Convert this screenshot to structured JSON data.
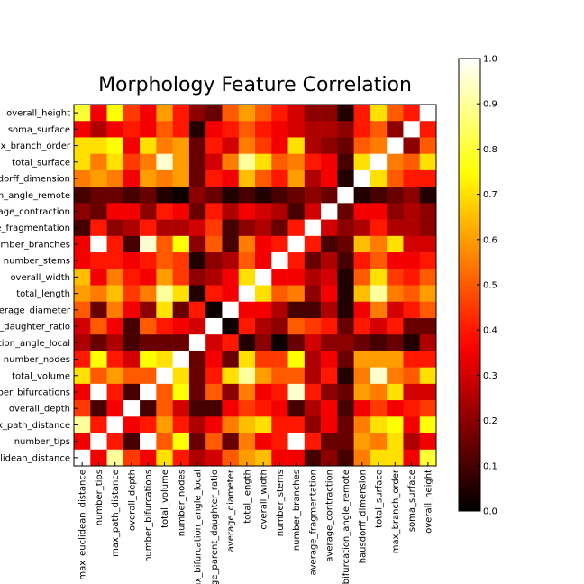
{
  "chart_data": {
    "type": "heatmap",
    "title": "Morphology Feature Correlation",
    "colormap": "hot",
    "clim": [
      0,
      1
    ],
    "colorbar_ticks": [
      {
        "value": 0,
        "label": "0.0"
      },
      0.1,
      0.2,
      0.3,
      0.4,
      0.5,
      0.6,
      0.7,
      0.8,
      0.9,
      {
        "value": 1,
        "label": "1.0"
      }
    ],
    "x_labels": [
      "max_euclidean_distance",
      "number_tips",
      "max_path_distance",
      "overall_depth",
      "number_bifurcations",
      "total_volume",
      "number_nodes",
      "max_bifurcation_angle_local",
      "average_parent_daughter_ratio",
      "average_diameter",
      "total_length",
      "overall_width",
      "number_stems",
      "number_branches",
      "average_fragmentation",
      "average_contraction",
      "max_bifurcation_angle_remote",
      "hausdorff_dimension",
      "total_surface",
      "max_branch_order",
      "soma_surface",
      "overall_height"
    ],
    "y_labels": [
      "overall_height",
      "soma_surface",
      "max_branch_order",
      "total_surface",
      "hausdorff_dimension",
      "max_bifurcation_angle_remote",
      "average_contraction",
      "average_fragmentation",
      "number_branches",
      "number_stems",
      "overall_width",
      "total_length",
      "average_diameter",
      "average_parent_daughter_ratio",
      "max_bifurcation_angle_local",
      "number_nodes",
      "total_volume",
      "number_bifurcations",
      "overall_depth",
      "max_path_distance",
      "number_tips",
      "max_euclidean_distance"
    ],
    "matrix": [
      [
        0.8,
        0.35,
        0.75,
        0.45,
        0.35,
        0.6,
        0.4,
        0.2,
        0.15,
        0.5,
        0.6,
        0.5,
        0.4,
        0.3,
        0.2,
        0.2,
        0.05,
        0.4,
        0.7,
        0.5,
        0.4,
        1
      ],
      [
        0.35,
        0.25,
        0.35,
        0.4,
        0.35,
        0.5,
        0.4,
        0.05,
        0.35,
        0.4,
        0.5,
        0.4,
        0.35,
        0.3,
        0.25,
        0.25,
        0.2,
        0.4,
        0.5,
        0.2,
        1,
        0.4
      ],
      [
        0.7,
        0.7,
        0.75,
        0.35,
        0.7,
        0.55,
        0.6,
        0.15,
        0.4,
        0.3,
        0.55,
        0.45,
        0.35,
        0.7,
        0.25,
        0.2,
        0.15,
        0.5,
        0.55,
        1,
        0.2,
        0.5
      ],
      [
        0.7,
        0.55,
        0.7,
        0.45,
        0.55,
        0.95,
        0.6,
        0.15,
        0.3,
        0.55,
        0.9,
        0.7,
        0.5,
        0.55,
        0.4,
        0.35,
        0.1,
        0.7,
        1,
        0.55,
        0.5,
        0.7
      ],
      [
        0.55,
        0.6,
        0.55,
        0.35,
        0.6,
        0.55,
        0.6,
        0.15,
        0.4,
        0.35,
        0.65,
        0.5,
        0.4,
        0.6,
        0.25,
        0.35,
        0.05,
        1,
        0.7,
        0.5,
        0.4,
        0.4
      ],
      [
        0.1,
        0.15,
        0.15,
        0.1,
        0.15,
        0.05,
        0.02,
        0.2,
        0.15,
        0.05,
        0.1,
        0.05,
        0.1,
        0.15,
        0.2,
        0.15,
        1,
        0.05,
        0.1,
        0.15,
        0.2,
        0.05
      ],
      [
        0.2,
        0.15,
        0.35,
        0.35,
        0.2,
        0.4,
        0.35,
        0.15,
        0.4,
        0.25,
        0.35,
        0.3,
        0.25,
        0.1,
        0.3,
        1,
        0.15,
        0.35,
        0.35,
        0.2,
        0.25,
        0.2
      ],
      [
        0.1,
        0.4,
        0.2,
        0.25,
        0.4,
        0.25,
        0.25,
        0.3,
        0.45,
        0.1,
        0.2,
        0.25,
        0.15,
        0.4,
        1,
        0.3,
        0.2,
        0.25,
        0.4,
        0.25,
        0.25,
        0.2
      ],
      [
        0.35,
        1,
        0.4,
        0.1,
        0.95,
        0.5,
        0.75,
        0.2,
        0.5,
        0.1,
        0.55,
        0.35,
        0.4,
        1,
        0.4,
        0.1,
        0.15,
        0.65,
        0.55,
        0.7,
        0.3,
        0.3
      ],
      [
        0.35,
        0.4,
        0.4,
        0.35,
        0.4,
        0.5,
        0.45,
        0.05,
        0.2,
        0.25,
        0.5,
        0.35,
        1,
        0.4,
        0.15,
        0.25,
        0.1,
        0.4,
        0.5,
        0.35,
        0.35,
        0.4
      ],
      [
        0.65,
        0.35,
        0.55,
        0.4,
        0.35,
        0.6,
        0.45,
        0.2,
        0.25,
        0.35,
        0.7,
        1,
        0.35,
        0.35,
        0.25,
        0.3,
        0.05,
        0.5,
        0.7,
        0.45,
        0.4,
        0.5
      ],
      [
        0.6,
        0.55,
        0.65,
        0.45,
        0.55,
        0.9,
        0.7,
        0.05,
        0.4,
        0.35,
        1,
        0.7,
        0.5,
        0.55,
        0.2,
        0.35,
        0.05,
        0.65,
        0.9,
        0.55,
        0.5,
        0.6
      ],
      [
        0.5,
        0.15,
        0.55,
        0.35,
        0.2,
        0.7,
        0.15,
        0.4,
        0.02,
        1,
        0.35,
        0.35,
        0.25,
        0.1,
        0.1,
        0.25,
        0.05,
        0.35,
        0.55,
        0.3,
        0.4,
        0.5
      ],
      [
        0.3,
        0.5,
        0.35,
        0.1,
        0.5,
        0.4,
        0.35,
        0.3,
        1,
        0.02,
        0.4,
        0.25,
        0.2,
        0.5,
        0.45,
        0.4,
        0.15,
        0.4,
        0.3,
        0.4,
        0.15,
        0.15
      ],
      [
        0.25,
        0.15,
        0.25,
        0.1,
        0.15,
        0.15,
        0.15,
        1,
        0.3,
        0.4,
        0.05,
        0.2,
        0.02,
        0.15,
        0.3,
        0.2,
        0.2,
        0.15,
        0.1,
        0.15,
        0.05,
        0.25
      ],
      [
        0.4,
        0.75,
        0.4,
        0.3,
        0.75,
        0.7,
        1,
        0.15,
        0.35,
        0.15,
        0.7,
        0.45,
        0.45,
        0.75,
        0.25,
        0.35,
        0.15,
        0.6,
        0.6,
        0.6,
        0.4,
        0.4
      ],
      [
        0.7,
        0.5,
        0.6,
        0.5,
        0.5,
        1,
        0.7,
        0.15,
        0.4,
        0.7,
        0.9,
        0.6,
        0.5,
        0.5,
        0.25,
        0.4,
        0.05,
        0.55,
        0.95,
        0.55,
        0.5,
        0.7
      ],
      [
        0.35,
        1,
        0.4,
        0.1,
        1,
        0.5,
        0.75,
        0.15,
        0.5,
        0.2,
        0.55,
        0.35,
        0.4,
        0.95,
        0.4,
        0.2,
        0.15,
        0.6,
        0.55,
        0.7,
        0.3,
        0.3
      ],
      [
        0.45,
        0.1,
        0.35,
        1,
        0.1,
        0.5,
        0.3,
        0.1,
        0.1,
        0.35,
        0.45,
        0.4,
        0.35,
        0.1,
        0.25,
        0.35,
        0.1,
        0.35,
        0.45,
        0.35,
        0.4,
        0.45
      ],
      [
        0.9,
        0.4,
        1,
        0.35,
        0.4,
        0.6,
        0.4,
        0.25,
        0.35,
        0.55,
        0.65,
        0.7,
        0.4,
        0.4,
        0.2,
        0.35,
        0.15,
        0.55,
        0.7,
        0.75,
        0.35,
        0.75
      ],
      [
        0.35,
        1,
        0.4,
        0.1,
        1,
        0.5,
        0.75,
        0.15,
        0.5,
        0.15,
        0.55,
        0.35,
        0.4,
        1,
        0.4,
        0.15,
        0.15,
        0.6,
        0.55,
        0.7,
        0.25,
        0.35
      ],
      [
        1,
        0.35,
        0.9,
        0.45,
        0.35,
        0.7,
        0.4,
        0.25,
        0.3,
        0.5,
        0.6,
        0.65,
        0.35,
        0.35,
        0.1,
        0.2,
        0.1,
        0.55,
        0.7,
        0.7,
        0.35,
        0.8
      ]
    ]
  }
}
